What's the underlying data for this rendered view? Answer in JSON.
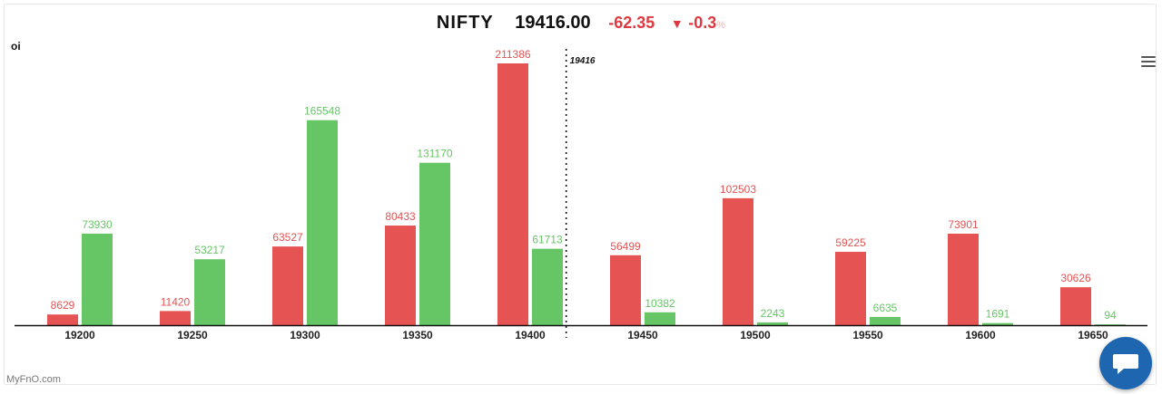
{
  "header": {
    "symbol": "NIFTY",
    "price": "19416.00",
    "change": "-62.35",
    "change_pct": "-0.3",
    "pct_sign": "%"
  },
  "footer": {
    "credit": "MyFnO.com"
  },
  "colors": {
    "calls": "#e55353",
    "puts": "#66c666",
    "axis": "#111111",
    "spot_line": "#111111"
  },
  "icons": {
    "menu": "hamburger-menu-icon",
    "chat": "chat-bubble-icon",
    "down": "triangle-down-icon"
  },
  "chart_data": {
    "type": "bar",
    "title": "",
    "ylabel": "oi",
    "xlabel": "",
    "categories": [
      "19200",
      "19250",
      "19300",
      "19350",
      "19400",
      "19450",
      "19500",
      "19550",
      "19600",
      "19650"
    ],
    "series": [
      {
        "values": [
          8629,
          11420,
          63527,
          80433,
          211386,
          56499,
          102503,
          59225,
          73901,
          30626
        ]
      },
      {
        "values": [
          73930,
          53217,
          165548,
          131170,
          61713,
          10382,
          2243,
          6635,
          1691,
          94
        ]
      }
    ],
    "spot": {
      "value": 19416,
      "label": "19416"
    },
    "ylim": [
      0,
      211386
    ],
    "grid": false,
    "legend": "none"
  }
}
